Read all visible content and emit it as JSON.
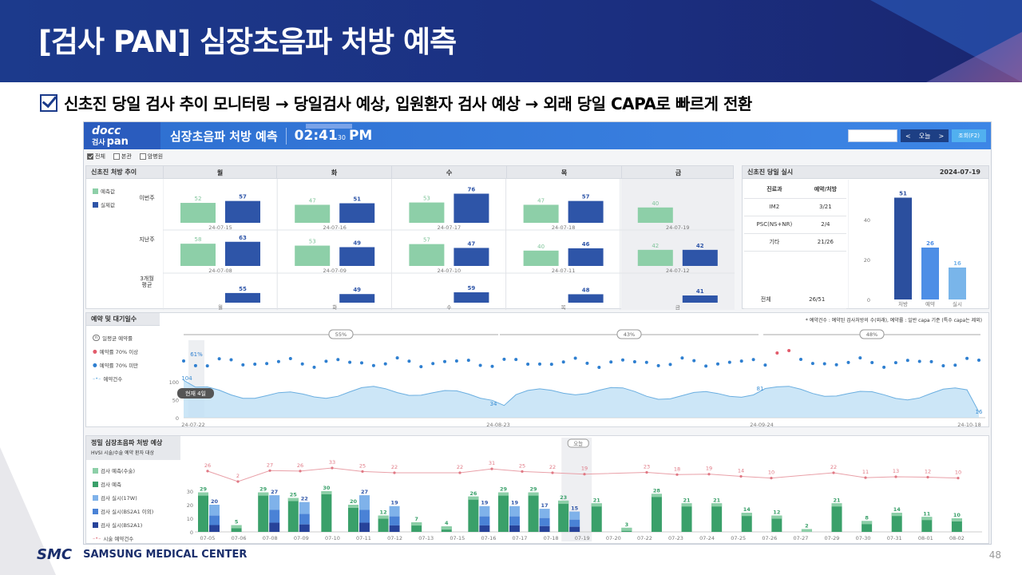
{
  "slide": {
    "title": "[검사 PAN] 심장초음파 처방 예측",
    "subtitle": "신초진 당일 검사 추이 모니터링 → 당일검사 예상,  입원환자 검사 예상 → 외래 당일 CAPA로 빠르게 전환",
    "page": "48",
    "org": "SAMSUNG MEDICAL CENTER",
    "org_logo": "SMC"
  },
  "app": {
    "logo_top": "docc",
    "logo_bottom": "검사",
    "logo_pan": "pan",
    "title": "심장초음파 처방 예측",
    "time": "02:41",
    "seconds": "30",
    "ampm": "PM",
    "today_label": "오늘",
    "prev_icon": "chevron-left-icon",
    "next_icon": "chevron-right-icon",
    "query_button": "조회(F2)",
    "filters": [
      {
        "label": "전체",
        "checked": true
      },
      {
        "label": "본관",
        "checked": false
      },
      {
        "label": "암병원",
        "checked": false
      }
    ]
  },
  "weekly": {
    "title": "신초진 처방 추이",
    "days": [
      "월",
      "화",
      "수",
      "목",
      "금"
    ],
    "legend": [
      "예측값",
      "실제값"
    ],
    "rows": [
      "이번주",
      "지난주",
      "3개월\n평균"
    ],
    "this_week": [
      {
        "date": "24-07-15",
        "pred": 52,
        "actual": 57
      },
      {
        "date": "24-07-16",
        "pred": 47,
        "actual": 51
      },
      {
        "date": "24-07-17",
        "pred": 53,
        "actual": 76
      },
      {
        "date": "24-07-18",
        "pred": 47,
        "actual": 57
      },
      {
        "date": "24-07-19",
        "pred": 40,
        "actual": null
      }
    ],
    "last_week": [
      {
        "date": "24-07-08",
        "pred": 58,
        "actual": 63
      },
      {
        "date": "24-07-09",
        "pred": 53,
        "actual": 49
      },
      {
        "date": "24-07-10",
        "pred": 57,
        "actual": 47
      },
      {
        "date": "24-07-11",
        "pred": 40,
        "actual": 46
      },
      {
        "date": "24-07-12",
        "pred": 42,
        "actual": 42
      }
    ],
    "avg3m": [
      {
        "day": "월",
        "value": 55
      },
      {
        "day": "화",
        "value": 49
      },
      {
        "day": "수",
        "value": 59
      },
      {
        "day": "목",
        "value": 48
      },
      {
        "day": "금",
        "value": 41
      }
    ]
  },
  "today": {
    "title": "신초진 당일 실시",
    "date": "2024-07-19",
    "headers": [
      "진료과",
      "예약/처방"
    ],
    "rows": [
      [
        "IM2",
        "3/21"
      ],
      [
        "PSC(NS+NR)",
        "2/4"
      ],
      [
        "기타",
        "21/26"
      ]
    ],
    "total": [
      "전체",
      "26/51"
    ],
    "chart": {
      "categories": [
        "처방",
        "예약",
        "실시"
      ],
      "values": [
        51,
        26,
        16
      ],
      "ticks": [
        "40",
        "20",
        "0"
      ]
    }
  },
  "booking": {
    "title": "예약 및 대기일수",
    "note": "* 예약건수 : 예약된 검사처방의 수(외래), 예약률 : 일반 capa 기준 (특수 capa는 제외)",
    "legend": [
      "n",
      "일평균 예약률",
      "예약률 70% 이상",
      "예약률 70% 미만",
      "예약건수"
    ],
    "periods": [
      "55%",
      "43%",
      "48%"
    ],
    "first_pct": "61%",
    "current_label": "현재 4일",
    "ticks": [
      "100",
      "50",
      "0"
    ],
    "dates": [
      "24-07-22",
      "24-08-23",
      "24-09-24",
      "24-10-18"
    ],
    "labels": [
      "104",
      "34",
      "81",
      "16"
    ]
  },
  "forecast": {
    "title": "정밀 심장초음파 처방 예상",
    "sub": "HVSI 시술/수술 예약 환자 대상",
    "today_tag": "오늘",
    "legend": [
      "검사 예측(수술)",
      "검사 예측",
      "검사 실시(17W)",
      "검사 실시(BS2A1 이외)",
      "검사 실시(BS2A1)",
      "시술 예약건수"
    ],
    "ticks": [
      "30",
      "20",
      "10",
      "0"
    ],
    "dates": [
      "07-05",
      "07-06",
      "07-08",
      "07-09",
      "07-10",
      "07-11",
      "07-12",
      "07-13",
      "07-15",
      "07-16",
      "07-17",
      "07-18",
      "07-19",
      "07-20",
      "07-22",
      "07-23",
      "07-24",
      "07-25",
      "07-26",
      "07-27",
      "07-29",
      "07-30",
      "07-31",
      "08-01",
      "08-02"
    ],
    "bar_labels": [
      "29|20",
      "5",
      "29|27",
      "25|22",
      "30",
      "20|27",
      "12|19",
      "7",
      "4",
      "26|19",
      "29|19",
      "29|17",
      "23|15",
      "21",
      "3",
      "28",
      "21",
      "21",
      "14",
      "12",
      "2",
      "21",
      "8",
      "14",
      "11",
      "10"
    ],
    "line_labels": [
      "26",
      "2",
      "27",
      "26",
      "33",
      "25",
      "22",
      "22",
      "31",
      "25",
      "22",
      "19",
      "23",
      "18",
      "19",
      "14",
      "10",
      "22",
      "11",
      "13",
      "12",
      "10"
    ]
  }
}
